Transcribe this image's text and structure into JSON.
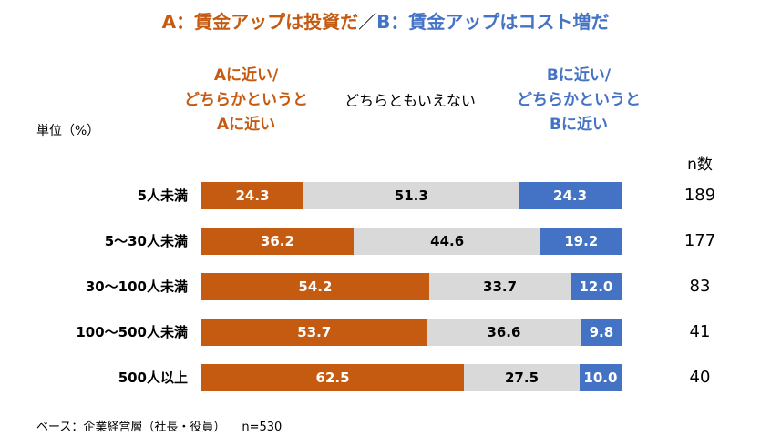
{
  "title": {
    "a": "A：賃金アップは投資だ",
    "sep": "／",
    "b": "B：賃金アップはコスト増だ"
  },
  "legend": {
    "a": "Aに近い/\nどちらかというと\nAに近い",
    "mid": "どちらともいえない",
    "b": "Bに近い/\nどちらかというと\nBに近い"
  },
  "unit_label": "単位（%）",
  "n_header": "n数",
  "footnote": {
    "base": "ベース：企業経営層（社長・役員）",
    "n": "n=530"
  },
  "colors": {
    "a": "#c55a11",
    "mid": "#d9d9d9",
    "b": "#4472c4"
  },
  "chart_data": {
    "type": "bar",
    "orientation": "horizontal",
    "stacked": true,
    "categories": [
      "5人未満",
      "5～30人未満",
      "30～100人未満",
      "100～500人未満",
      "500人以上"
    ],
    "series": [
      {
        "name": "Aに近い/どちらかというとAに近い",
        "values": [
          24.3,
          36.2,
          54.2,
          53.7,
          62.5
        ]
      },
      {
        "name": "どちらともいえない",
        "values": [
          51.3,
          44.6,
          33.7,
          36.6,
          27.5
        ]
      },
      {
        "name": "Bに近い/どちらかというとBに近い",
        "values": [
          24.3,
          19.2,
          12.0,
          9.8,
          10.0
        ]
      }
    ],
    "value_labels": [
      [
        "24.3",
        "51.3",
        "24.3"
      ],
      [
        "36.2",
        "44.6",
        "19.2"
      ],
      [
        "54.2",
        "33.7",
        "12.0"
      ],
      [
        "53.7",
        "36.6",
        "9.8"
      ],
      [
        "62.5",
        "27.5",
        "10.0"
      ]
    ],
    "n": [
      "189",
      "177",
      "83",
      "41",
      "40"
    ],
    "xlim": [
      0,
      100
    ],
    "ylabel": "単位（%）"
  }
}
